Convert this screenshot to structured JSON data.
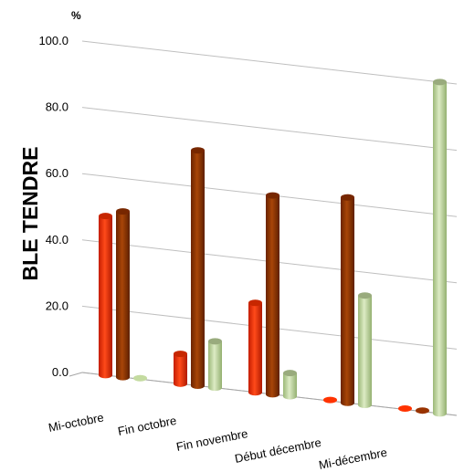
{
  "chart_data": {
    "type": "bar",
    "title": "",
    "ylabel": "BLE TENDRE",
    "unit": "%",
    "xlabel": "",
    "ylim": [
      0,
      100
    ],
    "yticks": [
      "0.0",
      "20.0",
      "40.0",
      "60.0",
      "80.0",
      "100.0"
    ],
    "grid": true,
    "legend": "none",
    "categories": [
      "Mi-octobre",
      "Fin octobre",
      "Fin novembre",
      "Début décembre",
      "Mi-décembre"
    ],
    "series": [
      {
        "values": [
          48,
          9,
          27,
          0.4,
          0.4
        ],
        "color": "#ff3300"
      },
      {
        "values": [
          50,
          71,
          60,
          62,
          0.5
        ],
        "color": "#993300"
      },
      {
        "values": [
          0.3,
          14,
          7,
          33,
          100
        ],
        "color": "#c4dba0"
      }
    ]
  }
}
